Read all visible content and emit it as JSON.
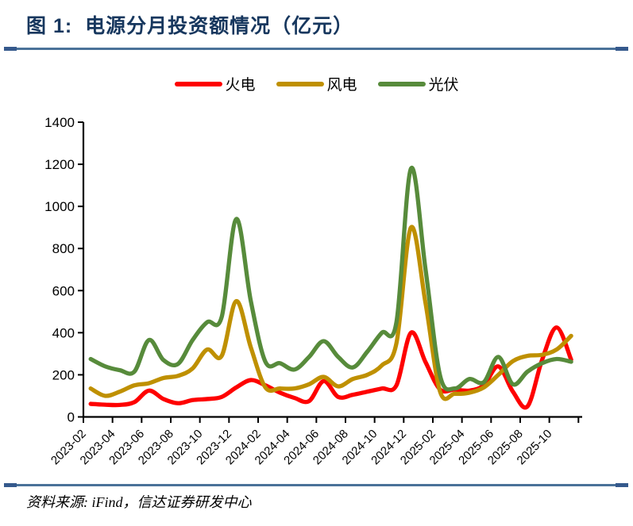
{
  "header": {
    "title": "图 1:  电源分月投资额情况（亿元）"
  },
  "footer": {
    "source": "资料来源: iFind，信达证券研发中心"
  },
  "colors": {
    "title_navy": "#17375E",
    "divider_blue": "#4A7299",
    "divider_cap": "#35598C",
    "axis": "#000000",
    "series_red": "#FE0000",
    "series_gold": "#BF9000",
    "series_green": "#578B3B"
  },
  "chart_data": {
    "type": "line",
    "smooth": true,
    "grid": false,
    "legend_position": "top-center",
    "title": "电源分月投资额情况（亿元）",
    "xlabel": "",
    "ylabel": "",
    "ylim": [
      0,
      1400
    ],
    "y_ticks": [
      0,
      200,
      400,
      600,
      800,
      1000,
      1200,
      1400
    ],
    "x_tick_labels": [
      "2023-02",
      "2023-04",
      "2023-06",
      "2023-08",
      "2023-10",
      "2023-12",
      "2024-02",
      "2024-04",
      "2024-06",
      "2024-08",
      "2024-10",
      "2024-12",
      "2025-02",
      "2025-04",
      "2025-06",
      "2025-08",
      "2025-10"
    ],
    "categories": [
      "2023-02",
      "2023-03",
      "2023-04",
      "2023-05",
      "2023-06",
      "2023-07",
      "2023-08",
      "2023-09",
      "2023-10",
      "2023-11",
      "2023-12",
      "2024-01",
      "2024-02",
      "2024-03",
      "2024-04",
      "2024-05",
      "2024-06",
      "2024-07",
      "2024-08",
      "2024-09",
      "2024-10",
      "2024-11",
      "2024-12",
      "2025-01",
      "2025-02",
      "2025-03",
      "2025-04",
      "2025-05",
      "2025-06",
      "2025-07",
      "2025-08",
      "2025-09",
      "2025-10",
      "2025-11"
    ],
    "series": [
      {
        "name": "火电",
        "color": "#FE0000",
        "values": [
          62,
          58,
          57,
          70,
          125,
          85,
          65,
          80,
          85,
          95,
          140,
          175,
          150,
          115,
          90,
          75,
          170,
          95,
          105,
          120,
          135,
          150,
          400,
          260,
          130,
          130,
          125,
          150,
          240,
          120,
          50,
          270,
          425,
          272
        ]
      },
      {
        "name": "风电",
        "color": "#BF9000",
        "values": [
          135,
          100,
          120,
          150,
          160,
          185,
          195,
          230,
          320,
          290,
          550,
          330,
          140,
          135,
          135,
          155,
          190,
          145,
          180,
          200,
          245,
          350,
          900,
          540,
          120,
          110,
          115,
          140,
          200,
          265,
          290,
          295,
          320,
          385
        ]
      },
      {
        "name": "光伏",
        "color": "#578B3B",
        "values": [
          275,
          240,
          222,
          215,
          365,
          270,
          252,
          365,
          450,
          475,
          940,
          550,
          262,
          255,
          225,
          285,
          360,
          285,
          235,
          310,
          400,
          450,
          1180,
          700,
          195,
          135,
          180,
          165,
          285,
          155,
          215,
          255,
          275,
          262
        ]
      }
    ]
  }
}
